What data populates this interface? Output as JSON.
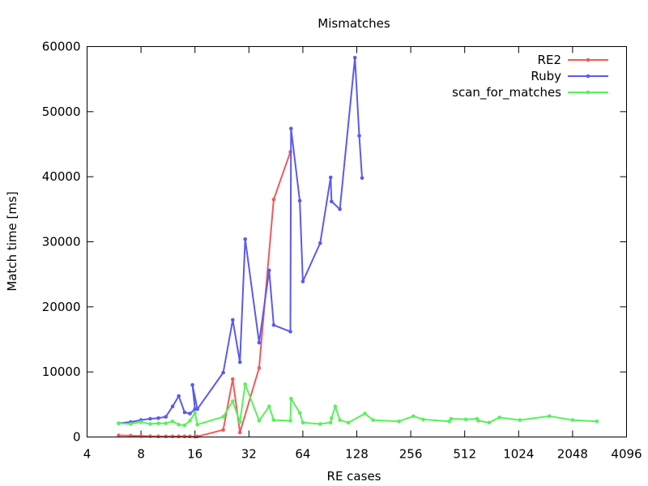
{
  "chart_data": {
    "type": "line",
    "title": "Mismatches",
    "xlabel": "RE cases",
    "ylabel": "Match time [ms]",
    "x_scale": "log2",
    "xlim": [
      4,
      4096
    ],
    "ylim": [
      0,
      60000
    ],
    "x_ticks": [
      4,
      8,
      16,
      32,
      64,
      128,
      256,
      512,
      1024,
      2048,
      4096
    ],
    "x_tick_labels": [
      "4",
      "8",
      "16",
      "32",
      "64",
      "128",
      "256",
      "512",
      "1024",
      "2048",
      "4096"
    ],
    "y_ticks": [
      0,
      10000,
      20000,
      30000,
      40000,
      50000,
      60000
    ],
    "y_tick_labels": [
      "0",
      "10000",
      "20000",
      "30000",
      "40000",
      "50000",
      "60000"
    ],
    "legend_position": "top-right",
    "series": [
      {
        "name": "RE2",
        "color": "#f05a5a",
        "points": [
          [
            6,
            250
          ],
          [
            7,
            200
          ],
          [
            8,
            150
          ],
          [
            9,
            120
          ],
          [
            10,
            100
          ],
          [
            11,
            100
          ],
          [
            12,
            100
          ],
          [
            13,
            100
          ],
          [
            14,
            100
          ],
          [
            15,
            100
          ],
          [
            16,
            50
          ],
          [
            16.5,
            80
          ],
          [
            23,
            1100
          ],
          [
            26,
            8900
          ],
          [
            28.5,
            700
          ],
          [
            36.5,
            10600
          ],
          [
            44,
            36500
          ],
          [
            54.5,
            43800
          ]
        ]
      },
      {
        "name": "Ruby",
        "color": "#5a5af0",
        "points": [
          [
            6,
            2100
          ],
          [
            7,
            2300
          ],
          [
            8,
            2600
          ],
          [
            9,
            2800
          ],
          [
            10,
            2900
          ],
          [
            11,
            3100
          ],
          [
            12,
            4700
          ],
          [
            13,
            6300
          ],
          [
            14,
            3800
          ],
          [
            15,
            3600
          ],
          [
            16,
            4300
          ],
          [
            15.5,
            8000
          ],
          [
            16.5,
            4300
          ],
          [
            23,
            9900
          ],
          [
            26,
            18000
          ],
          [
            28.5,
            11500
          ],
          [
            30.5,
            30400
          ],
          [
            36.5,
            14500
          ],
          [
            41.5,
            25600
          ],
          [
            44,
            17200
          ],
          [
            54.5,
            16200
          ],
          [
            55,
            47400
          ],
          [
            61.5,
            36300
          ],
          [
            64,
            23900
          ],
          [
            80,
            29800
          ],
          [
            91.5,
            39900
          ],
          [
            92.5,
            36200
          ],
          [
            103,
            35000
          ],
          [
            125,
            58300
          ],
          [
            132,
            46300
          ],
          [
            137,
            39800
          ]
        ]
      },
      {
        "name": "scan_for_matches",
        "color": "#5af05a",
        "points": [
          [
            6,
            2100
          ],
          [
            7,
            2000
          ],
          [
            8,
            2300
          ],
          [
            9,
            2000
          ],
          [
            10,
            2100
          ],
          [
            11,
            2100
          ],
          [
            12,
            2400
          ],
          [
            13,
            1900
          ],
          [
            14,
            1800
          ],
          [
            15,
            2500
          ],
          [
            16,
            3700
          ],
          [
            16.5,
            1900
          ],
          [
            23,
            3100
          ],
          [
            26,
            5500
          ],
          [
            28.5,
            2300
          ],
          [
            30.5,
            8100
          ],
          [
            36.5,
            2500
          ],
          [
            41.5,
            4700
          ],
          [
            44,
            2600
          ],
          [
            54.5,
            2500
          ],
          [
            55,
            5900
          ],
          [
            61.5,
            3700
          ],
          [
            64,
            2200
          ],
          [
            80,
            2000
          ],
          [
            91.5,
            2200
          ],
          [
            92.5,
            2900
          ],
          [
            97,
            4700
          ],
          [
            103,
            2600
          ],
          [
            115,
            2200
          ],
          [
            142,
            3600
          ],
          [
            158,
            2600
          ],
          [
            220,
            2400
          ],
          [
            265,
            3200
          ],
          [
            300,
            2700
          ],
          [
            420,
            2400
          ],
          [
            430,
            2800
          ],
          [
            520,
            2700
          ],
          [
            600,
            2800
          ],
          [
            610,
            2500
          ],
          [
            700,
            2200
          ],
          [
            800,
            3000
          ],
          [
            1040,
            2600
          ],
          [
            1520,
            3200
          ],
          [
            2050,
            2600
          ],
          [
            2800,
            2400
          ]
        ]
      }
    ]
  }
}
